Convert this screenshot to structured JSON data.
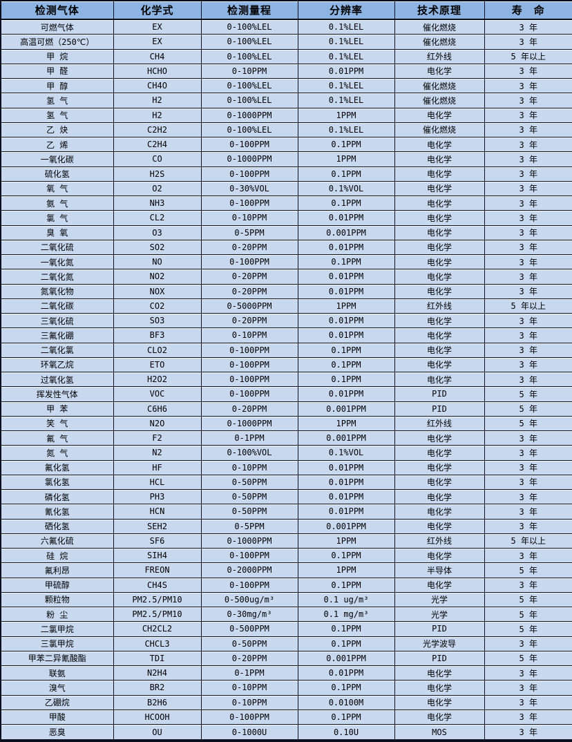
{
  "colors": {
    "header_bg": "#8db4e2",
    "row_bg": "#c8d8ef",
    "border": "#0b0f1d",
    "text": "#000000"
  },
  "table": {
    "headers": [
      "检测气体",
      "化学式",
      "检测量程",
      "分辨率",
      "技术原理",
      "寿 命"
    ],
    "rows": [
      [
        "可燃气体",
        "EX",
        "0-100%LEL",
        "0.1%LEL",
        "催化燃烧",
        "3 年"
      ],
      [
        "高温可燃（250℃）",
        "EX",
        "0-100%LEL",
        "0.1%LEL",
        "催化燃烧",
        "3 年"
      ],
      [
        "甲 烷",
        "CH4",
        "0-100%LEL",
        "0.1%LEL",
        "红外线",
        "5 年以上"
      ],
      [
        "甲 醛",
        "HCHO",
        "0-10PPM",
        "0.01PPM",
        "电化学",
        "3 年"
      ],
      [
        "甲 醇",
        "CH4O",
        "0-100%LEL",
        "0.1%LEL",
        "催化燃烧",
        "3 年"
      ],
      [
        "氢 气",
        "H2",
        "0-100%LEL",
        "0.1%LEL",
        "催化燃烧",
        "3 年"
      ],
      [
        "氢 气",
        "H2",
        "0-1000PPM",
        "1PPM",
        "电化学",
        "3 年"
      ],
      [
        "乙 炔",
        "C2H2",
        "0-100%LEL",
        "0.1%LEL",
        "催化燃烧",
        "3 年"
      ],
      [
        "乙 烯",
        "C2H4",
        "0-100PPM",
        "0.1PPM",
        "电化学",
        "3 年"
      ],
      [
        "一氧化碳",
        "CO",
        "0-1000PPM",
        "1PPM",
        "电化学",
        "3 年"
      ],
      [
        "硫化氢",
        "H2S",
        "0-100PPM",
        "0.1PPM",
        "电化学",
        "3 年"
      ],
      [
        "氧 气",
        "O2",
        "0-30%VOL",
        "0.1%VOL",
        "电化学",
        "3 年"
      ],
      [
        "氨 气",
        "NH3",
        "0-100PPM",
        "0.1PPM",
        "电化学",
        "3 年"
      ],
      [
        "氯 气",
        "CL2",
        "0-10PPM",
        "0.01PPM",
        "电化学",
        "3 年"
      ],
      [
        "臭 氧",
        "O3",
        "0-5PPM",
        "0.001PPM",
        "电化学",
        "3 年"
      ],
      [
        "二氧化硫",
        "SO2",
        "0-20PPM",
        "0.01PPM",
        "电化学",
        "3 年"
      ],
      [
        "一氧化氮",
        "NO",
        "0-100PPM",
        "0.1PPM",
        "电化学",
        "3 年"
      ],
      [
        "二氧化氮",
        "NO2",
        "0-20PPM",
        "0.01PPM",
        "电化学",
        "3 年"
      ],
      [
        "氮氧化物",
        "NOX",
        "0-20PPM",
        "0.01PPM",
        "电化学",
        "3 年"
      ],
      [
        "二氧化碳",
        "CO2",
        "0-5000PPM",
        "1PPM",
        "红外线",
        "5 年以上"
      ],
      [
        "三氧化硫",
        "SO3",
        "0-20PPM",
        "0.01PPM",
        "电化学",
        "3 年"
      ],
      [
        "三氟化硼",
        "BF3",
        "0-10PPM",
        "0.01PPM",
        "电化学",
        "3 年"
      ],
      [
        "二氧化氯",
        "CLO2",
        "0-100PPM",
        "0.1PPM",
        "电化学",
        "3 年"
      ],
      [
        "环氧乙烷",
        "ETO",
        "0-100PPM",
        "0.1PPM",
        "电化学",
        "3 年"
      ],
      [
        "过氧化氢",
        "H2O2",
        "0-100PPM",
        "0.1PPM",
        "电化学",
        "3 年"
      ],
      [
        "挥发性气体",
        "VOC",
        "0-100PPM",
        "0.01PPM",
        "PID",
        "5 年"
      ],
      [
        "甲 苯",
        "C6H6",
        "0-20PPM",
        "0.001PPM",
        "PID",
        "5 年"
      ],
      [
        "笑 气",
        "N2O",
        "0-1000PPM",
        "1PPM",
        "红外线",
        "5 年"
      ],
      [
        "氟 气",
        "F2",
        "0-1PPM",
        "0.001PPM",
        "电化学",
        "3 年"
      ],
      [
        "氮 气",
        "N2",
        "0-100%VOL",
        "0.1%VOL",
        "电化学",
        "3 年"
      ],
      [
        "氟化氢",
        "HF",
        "0-10PPM",
        "0.01PPM",
        "电化学",
        "3 年"
      ],
      [
        "氯化氢",
        "HCL",
        "0-50PPM",
        "0.01PPM",
        "电化学",
        "3 年"
      ],
      [
        "磷化氢",
        "PH3",
        "0-50PPM",
        "0.01PPM",
        "电化学",
        "3 年"
      ],
      [
        "氰化氢",
        "HCN",
        "0-50PPM",
        "0.01PPM",
        "电化学",
        "3 年"
      ],
      [
        "硒化氢",
        "SEH2",
        "0-5PPM",
        "0.001PPM",
        "电化学",
        "3 年"
      ],
      [
        "六氟化硫",
        "SF6",
        "0-1000PPM",
        "1PPM",
        "红外线",
        "5 年以上"
      ],
      [
        "硅 烷",
        "SIH4",
        "0-100PPM",
        "0.1PPM",
        "电化学",
        "3 年"
      ],
      [
        "氟利昂",
        "FREON",
        "0-2000PPM",
        "1PPM",
        "半导体",
        "5 年"
      ],
      [
        "甲硫醇",
        "CH4S",
        "0-100PPM",
        "0.1PPM",
        "电化学",
        "3 年"
      ],
      [
        "颗粒物",
        "PM2.5/PM10",
        "0-500ug/m³",
        "0.1 ug/m³",
        "光学",
        "5 年"
      ],
      [
        "粉 尘",
        "PM2.5/PM10",
        "0-30mg/m³",
        "0.1 mg/m³",
        "光学",
        "5 年"
      ],
      [
        "二氯甲烷",
        "CH2CL2",
        "0-500PPM",
        "0.1PPM",
        "PID",
        "5 年"
      ],
      [
        "三氯甲烷",
        "CHCL3",
        "0-50PPM",
        "0.1PPM",
        "光学波导",
        "3 年"
      ],
      [
        "甲苯二异氰酸酯",
        "TDI",
        "0-20PPM",
        "0.001PPM",
        "PID",
        "5 年"
      ],
      [
        "联氨",
        "N2H4",
        "0-1PPM",
        "0.01PPM",
        "电化学",
        "3 年"
      ],
      [
        "溴气",
        "BR2",
        "0-10PPM",
        "0.1PPM",
        "电化学",
        "3 年"
      ],
      [
        "乙硼烷",
        "B2H6",
        "0-10PPM",
        "0.0100M",
        "电化学",
        "3 年"
      ],
      [
        "甲酸",
        "HCOOH",
        "0-100PPM",
        "0.1PPM",
        "电化学",
        "3 年"
      ],
      [
        "恶臭",
        "OU",
        "0-1000U",
        "0.10U",
        "MOS",
        "3 年"
      ]
    ]
  }
}
